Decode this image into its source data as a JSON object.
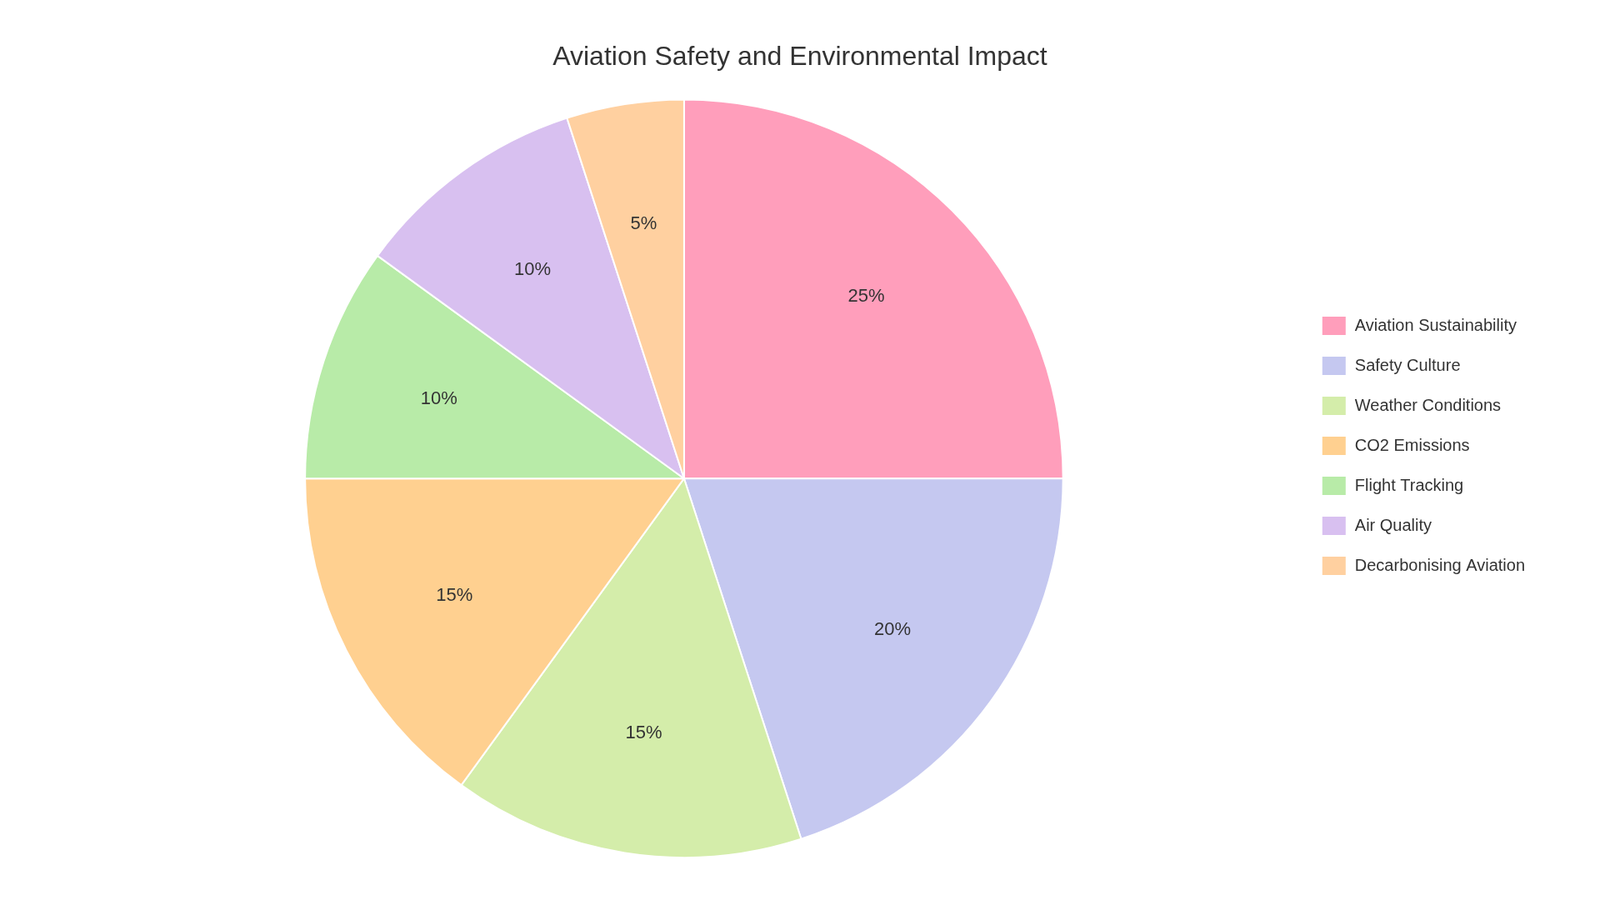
{
  "chart_data": {
    "type": "pie",
    "title": "Aviation Safety and Environmental Impact",
    "categories": [
      "Aviation Sustainability",
      "Safety Culture",
      "Weather Conditions",
      "CO2 Emissions",
      "Flight Tracking",
      "Air Quality",
      "Decarbonising Aviation"
    ],
    "values": [
      25,
      20,
      15,
      15,
      10,
      10,
      5
    ],
    "value_labels": [
      "25%",
      "20%",
      "15%",
      "15%",
      "10%",
      "10%",
      "5%"
    ],
    "colors": [
      "#FF9EBB",
      "#C5C8F0",
      "#D4EDAA",
      "#FFD090",
      "#B8EBA8",
      "#D8C0F0",
      "#FFD0A0"
    ],
    "data_labels": true,
    "legend": "right"
  }
}
